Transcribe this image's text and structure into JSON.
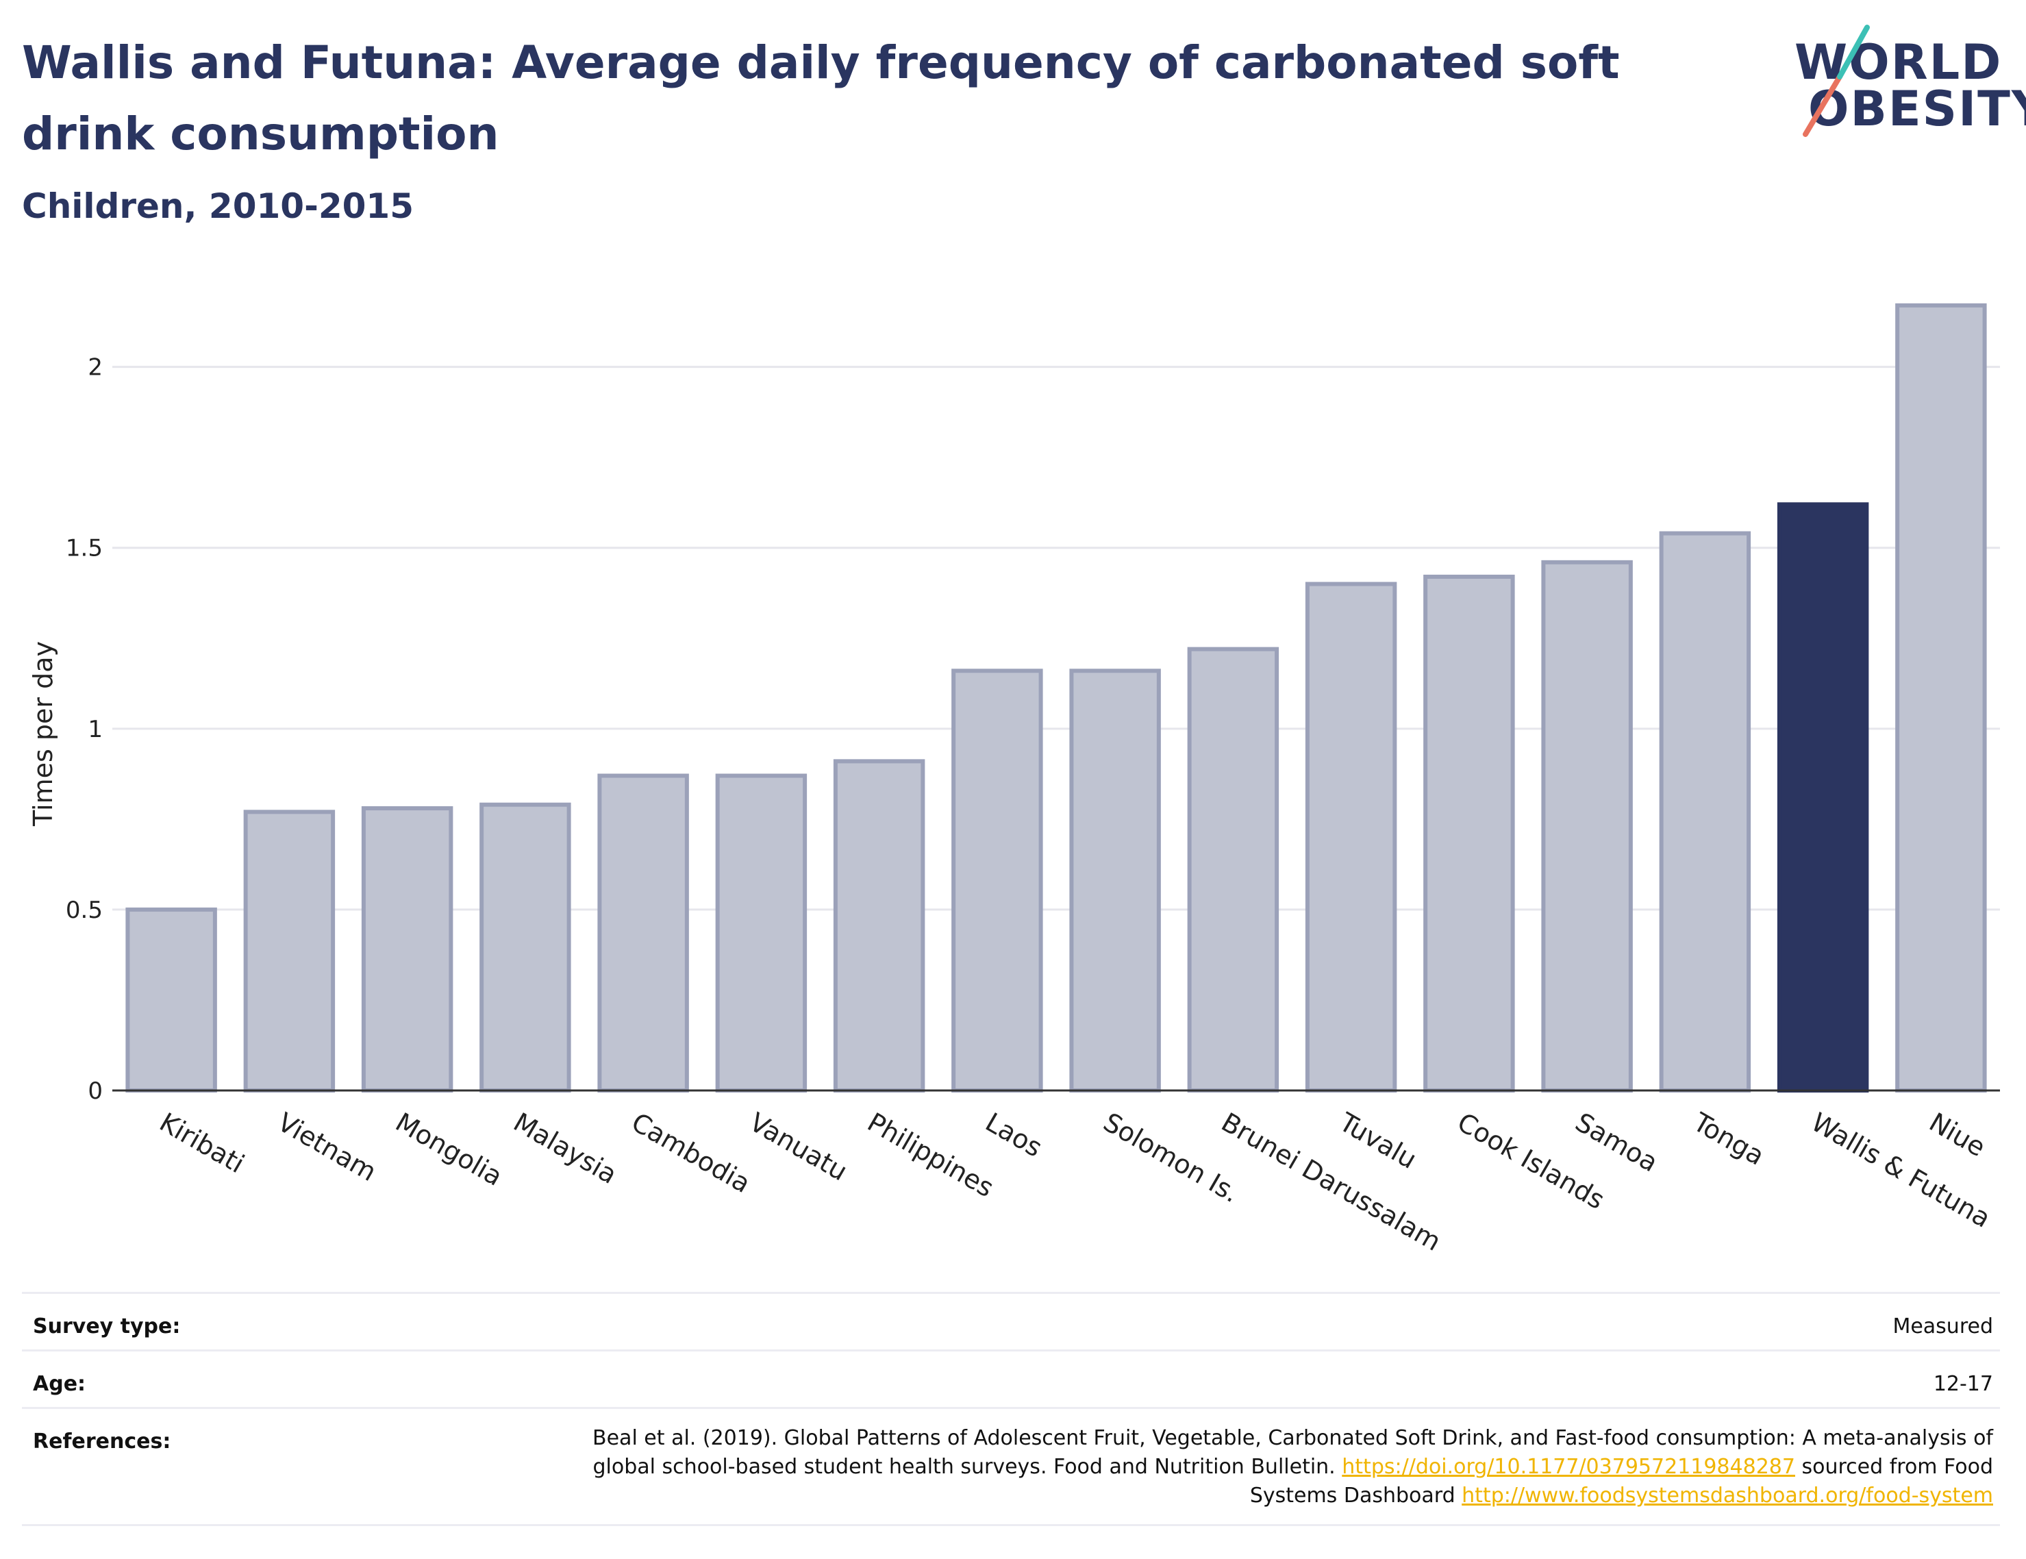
{
  "header": {
    "title": "Wallis and Futuna: Average daily frequency of carbonated soft drink consumption",
    "subtitle": "Children, 2010-2015"
  },
  "logo": {
    "line1": "WORLD",
    "line2": "OBESITY"
  },
  "colors": {
    "bar": "#bfc3d1",
    "bar_border": "#9ba1b9",
    "highlight": "#2b3560",
    "grid": "#e6e6ec",
    "logo_teal": "#3cc0b5",
    "logo_coral": "#e8735f"
  },
  "chart_data": {
    "type": "bar",
    "title": "Wallis and Futuna: Average daily frequency of carbonated soft drink consumption",
    "subtitle": "Children, 2010-2015",
    "xlabel": "",
    "ylabel": "Times per day",
    "ylim": [
      0,
      2.2
    ],
    "yticks": [
      0,
      0.5,
      1,
      1.5,
      2
    ],
    "ytick_labels": [
      "0",
      "0.5",
      "1",
      "1.5",
      "2"
    ],
    "grid": true,
    "highlight": "Wallis & Futuna",
    "categories": [
      "Kiribati",
      "Vietnam",
      "Mongolia",
      "Malaysia",
      "Cambodia",
      "Vanuatu",
      "Philippines",
      "Laos",
      "Solomon Is.",
      "Brunei Darussalam",
      "Tuvalu",
      "Cook Islands",
      "Samoa",
      "Tonga",
      "Wallis & Futuna",
      "Niue"
    ],
    "values": [
      0.5,
      0.77,
      0.78,
      0.79,
      0.87,
      0.87,
      0.91,
      1.16,
      1.16,
      1.22,
      1.4,
      1.42,
      1.46,
      1.54,
      1.62,
      2.17
    ]
  },
  "info": {
    "survey_type_label": "Survey type:",
    "survey_type_value": "Measured",
    "age_label": "Age:",
    "age_value": "12-17",
    "references_label": "References:",
    "reference_text": "Beal et al. (2019). Global Patterns of Adolescent Fruit, Vegetable, Carbonated Soft Drink, and Fast-food consumption: A meta-analysis of global school-based student health surveys. Food and Nutrition Bulletin.",
    "reference_link1": "https://doi.org/10.1177/0379572119848287",
    "reference_mid": "sourced from Food Systems Dashboard",
    "reference_link2": "http://www.foodsystemsdashboard.org/food-system"
  }
}
